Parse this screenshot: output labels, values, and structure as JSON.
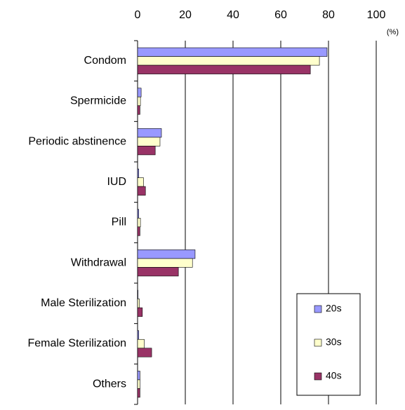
{
  "chart_data": {
    "type": "hbar",
    "unit_label": "(%)",
    "categories": [
      "Condom",
      "Spermicide",
      "Periodic abstinence",
      "IUD",
      "Pill",
      "Withdrawal",
      "Male Sterilization",
      "Female Sterilization",
      "Others"
    ],
    "series": [
      {
        "name": "20s",
        "color": "#9999ff",
        "values": [
          79.4,
          1.5,
          10.0,
          0.5,
          0.5,
          24.1,
          0.2,
          0.5,
          1.0
        ]
      },
      {
        "name": "30s",
        "color": "#ffffcc",
        "values": [
          76.2,
          1.2,
          9.4,
          2.5,
          1.2,
          23.0,
          0.8,
          2.8,
          1.0
        ]
      },
      {
        "name": "40s",
        "color": "#993366",
        "values": [
          72.4,
          1.0,
          7.4,
          3.3,
          1.0,
          17.1,
          2.0,
          5.9,
          1.0
        ]
      }
    ],
    "xlim": [
      0,
      100
    ],
    "xticks": [
      0,
      20,
      40,
      60,
      80,
      100
    ],
    "grid": true,
    "legend": "bottom-right"
  }
}
